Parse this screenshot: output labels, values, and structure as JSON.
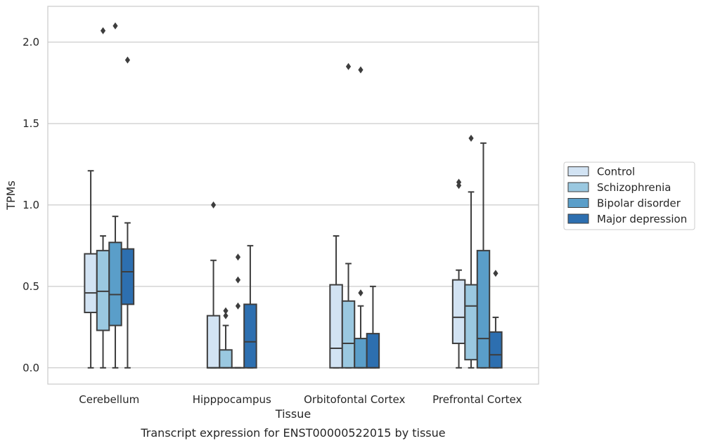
{
  "caption": "Transcript expression for ENST00000522015 by tissue",
  "chart_data": {
    "type": "box",
    "xlabel": "Tissue",
    "ylabel": "TPMs",
    "ylim": [
      -0.1,
      2.22
    ],
    "yticks": [
      "0.0",
      "0.5",
      "1.0",
      "1.5",
      "2.0"
    ],
    "ytick_values": [
      0.0,
      0.5,
      1.0,
      1.5,
      2.0
    ],
    "grid": "horizontal",
    "legend_position": "right",
    "categories": [
      "Cerebellum",
      "Hipppocampus",
      "Orbitofontal Cortex",
      "Prefrontal Cortex"
    ],
    "series": [
      {
        "name": "Control",
        "color": "#d2e3f3",
        "boxes": [
          {
            "min": 0.0,
            "q1": 0.34,
            "median": 0.46,
            "q3": 0.7,
            "max": 1.21,
            "outliers": []
          },
          {
            "min": 0.0,
            "q1": 0.0,
            "median": 0.0,
            "q3": 0.32,
            "max": 0.66,
            "outliers": [
              1.0
            ]
          },
          {
            "min": 0.0,
            "q1": 0.0,
            "median": 0.12,
            "q3": 0.51,
            "max": 0.81,
            "outliers": []
          },
          {
            "min": 0.0,
            "q1": 0.15,
            "median": 0.31,
            "q3": 0.54,
            "max": 0.6,
            "outliers": [
              1.12,
              1.14
            ]
          }
        ]
      },
      {
        "name": "Schizophrenia",
        "color": "#9ac8e0",
        "boxes": [
          {
            "min": 0.0,
            "q1": 0.23,
            "median": 0.47,
            "q3": 0.72,
            "max": 0.81,
            "outliers": [
              2.07
            ]
          },
          {
            "min": 0.0,
            "q1": 0.0,
            "median": 0.0,
            "q3": 0.11,
            "max": 0.26,
            "outliers": [
              0.32,
              0.35
            ]
          },
          {
            "min": 0.0,
            "q1": 0.0,
            "median": 0.15,
            "q3": 0.41,
            "max": 0.64,
            "outliers": [
              1.85
            ]
          },
          {
            "min": 0.0,
            "q1": 0.05,
            "median": 0.38,
            "q3": 0.51,
            "max": 1.08,
            "outliers": [
              1.41
            ]
          }
        ]
      },
      {
        "name": "Bipolar disorder",
        "color": "#5a9ec9",
        "boxes": [
          {
            "min": 0.0,
            "q1": 0.26,
            "median": 0.45,
            "q3": 0.77,
            "max": 0.93,
            "outliers": [
              2.1
            ]
          },
          {
            "min": 0.0,
            "q1": 0.0,
            "median": 0.0,
            "q3": 0.0,
            "max": 0.0,
            "outliers": [
              0.38,
              0.54,
              0.68
            ]
          },
          {
            "min": 0.0,
            "q1": 0.0,
            "median": 0.0,
            "q3": 0.18,
            "max": 0.38,
            "outliers": [
              0.46,
              1.83
            ]
          },
          {
            "min": 0.0,
            "q1": 0.0,
            "median": 0.18,
            "q3": 0.72,
            "max": 1.38,
            "outliers": []
          }
        ]
      },
      {
        "name": "Major depression",
        "color": "#2d6fb0",
        "boxes": [
          {
            "min": 0.0,
            "q1": 0.39,
            "median": 0.59,
            "q3": 0.73,
            "max": 0.89,
            "outliers": [
              1.89
            ]
          },
          {
            "min": 0.0,
            "q1": 0.0,
            "median": 0.16,
            "q3": 0.39,
            "max": 0.75,
            "outliers": []
          },
          {
            "min": 0.0,
            "q1": 0.0,
            "median": 0.0,
            "q3": 0.21,
            "max": 0.5,
            "outliers": []
          },
          {
            "min": 0.0,
            "q1": 0.0,
            "median": 0.08,
            "q3": 0.22,
            "max": 0.31,
            "outliers": [
              0.58
            ]
          }
        ]
      }
    ]
  }
}
